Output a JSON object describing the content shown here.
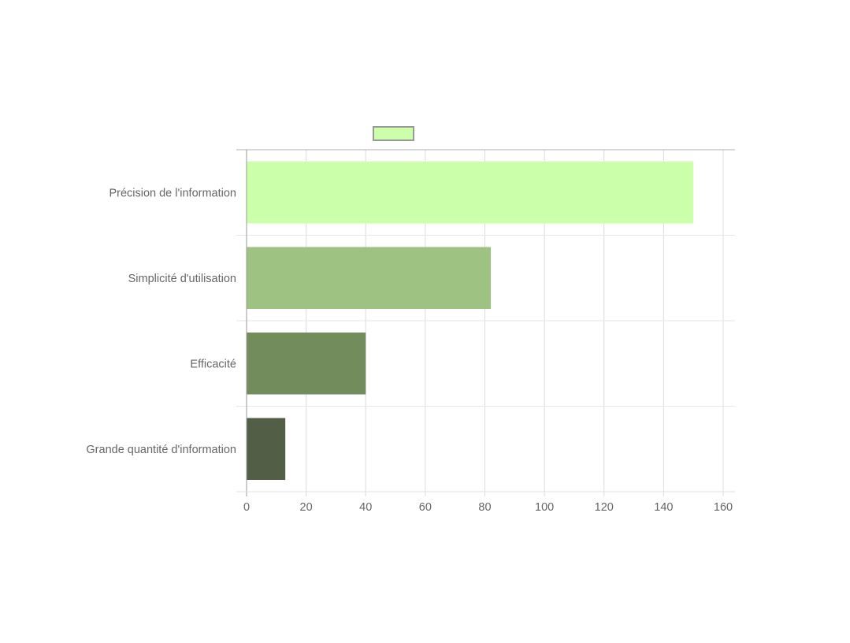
{
  "chart_data": {
    "type": "bar",
    "orientation": "horizontal",
    "categories": [
      "Précision de l'information",
      "Simplicité d'utilisation",
      "Efficacité",
      "Grande quantité d'information"
    ],
    "values": [
      150,
      82,
      40,
      13
    ],
    "bar_colors": [
      "#ccffaa",
      "#9dc282",
      "#728c5c",
      "#525f46"
    ],
    "xlim": [
      0,
      160
    ],
    "x_ticks": [
      "0",
      "20",
      "40",
      "60",
      "80",
      "100",
      "120",
      "140",
      "160"
    ],
    "grid": true,
    "legend": {
      "placement": "top",
      "swatch_color": "#ccffaa",
      "swatch_border": "#999999",
      "label": ""
    },
    "title": "",
    "xlabel": "",
    "ylabel": ""
  }
}
